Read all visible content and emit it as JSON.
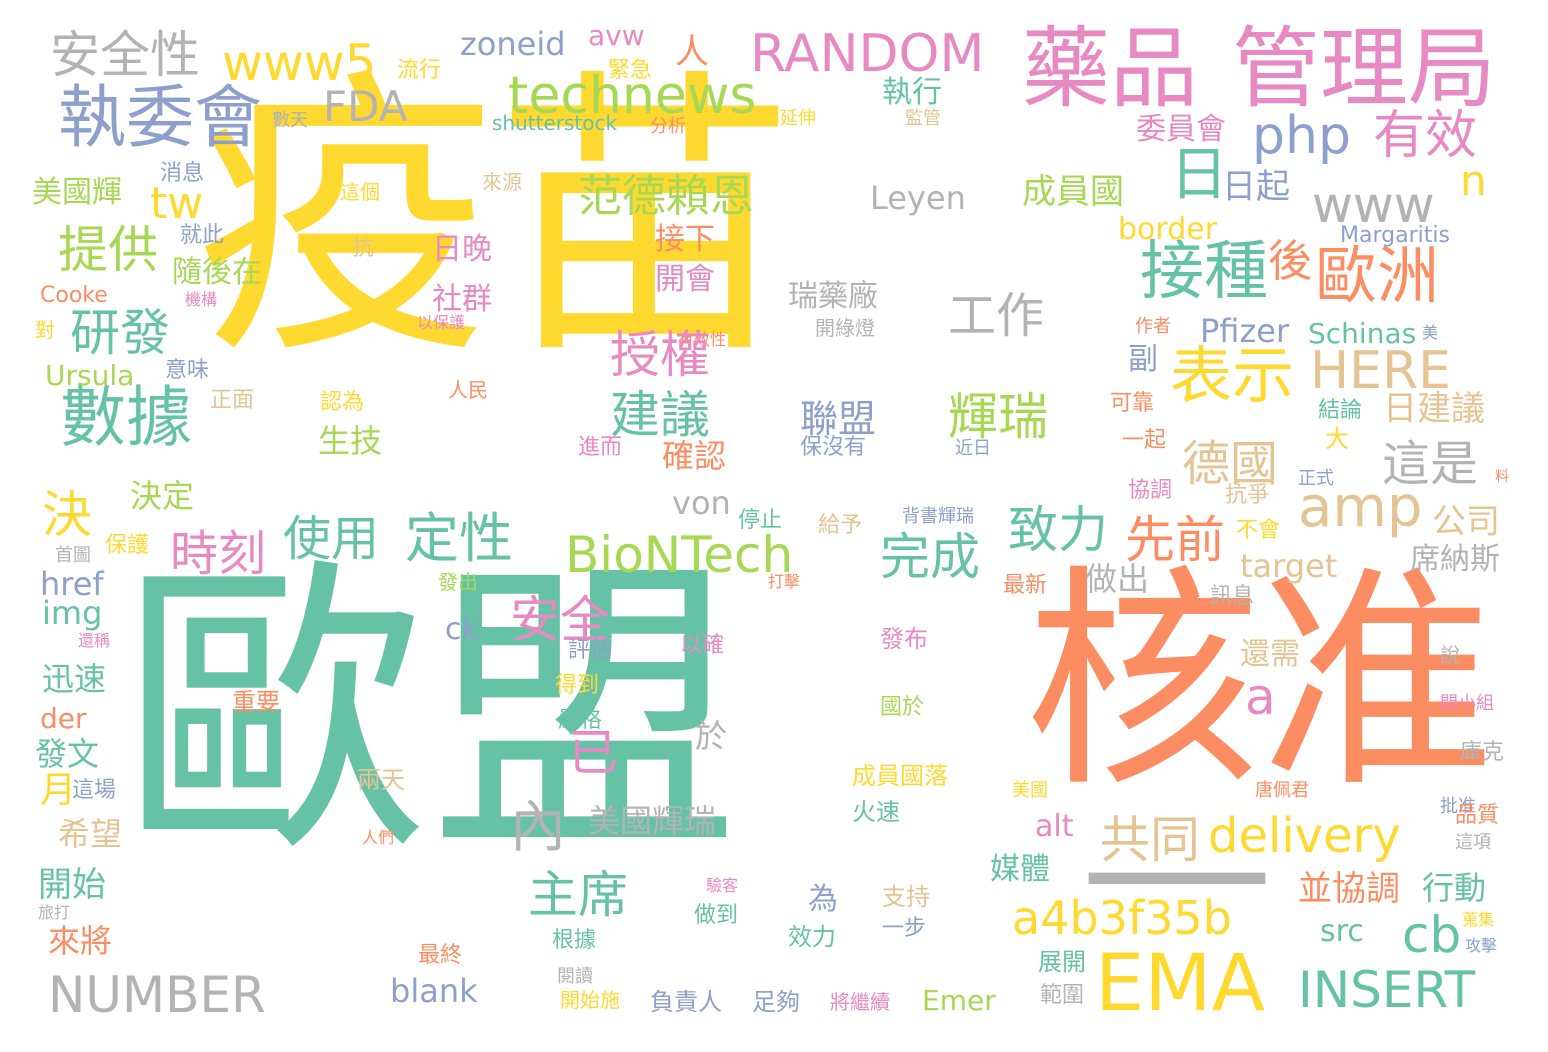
{
  "palette": {
    "teal": "#66c2a5",
    "orange": "#fc8d62",
    "blue": "#8da0cb",
    "pink": "#e78ac3",
    "green": "#a6d854",
    "yellow": "#ffd92f",
    "tan": "#e5c494",
    "gray": "#b3b3b3"
  },
  "words": [
    {
      "text": "疫苗",
      "color": "#ffd92f"
    },
    {
      "text": "歐盟",
      "color": "#66c2a5"
    },
    {
      "text": "核准",
      "color": "#fc8d62"
    },
    {
      "text": "—",
      "color": "#b3b3b3"
    },
    {
      "text": "藥品",
      "color": "#e78ac3"
    },
    {
      "text": "管理局",
      "color": "#e78ac3"
    },
    {
      "text": "EMA",
      "color": "#ffd92f"
    },
    {
      "text": "執委會",
      "color": "#8da0cb"
    },
    {
      "text": "數據",
      "color": "#66c2a5"
    },
    {
      "text": "接種",
      "color": "#66c2a5"
    },
    {
      "text": "表示",
      "color": "#ffd92f"
    },
    {
      "text": "歐洲",
      "color": "#fc8d62"
    },
    {
      "text": "RANDOM",
      "color": "#e78ac3"
    },
    {
      "text": "technews",
      "color": "#a6d854"
    },
    {
      "text": "www5",
      "color": "#ffd92f"
    },
    {
      "text": "安全性",
      "color": "#b3b3b3"
    },
    {
      "text": "FDA",
      "color": "#b3b3b3"
    },
    {
      "text": "zoneid",
      "color": "#8da0cb"
    },
    {
      "text": "avw",
      "color": "#e78ac3"
    },
    {
      "text": "流行",
      "color": "#ffd92f"
    },
    {
      "text": "緊急",
      "color": "#ffd92f"
    },
    {
      "text": "人",
      "color": "#fc8d62"
    },
    {
      "text": "執行",
      "color": "#66c2a5"
    },
    {
      "text": "監管",
      "color": "#e5c494"
    },
    {
      "text": "php",
      "color": "#8da0cb"
    },
    {
      "text": "有效",
      "color": "#e78ac3"
    },
    {
      "text": "日",
      "color": "#66c2a5"
    },
    {
      "text": "日起",
      "color": "#8da0cb"
    },
    {
      "text": "委員會",
      "color": "#e78ac3"
    },
    {
      "text": "n",
      "color": "#ffd92f"
    },
    {
      "text": "www",
      "color": "#b3b3b3"
    },
    {
      "text": "shutterstock",
      "color": "#66c2a5"
    },
    {
      "text": "分析",
      "color": "#fc8d62"
    },
    {
      "text": "延伸",
      "color": "#ffd92f"
    },
    {
      "text": "數天",
      "color": "#b3b3b3"
    },
    {
      "text": "消息",
      "color": "#8da0cb"
    },
    {
      "text": "美國輝",
      "color": "#a6d854"
    },
    {
      "text": "tw",
      "color": "#ffd92f"
    },
    {
      "text": "這個",
      "color": "#ffd92f"
    },
    {
      "text": "來源",
      "color": "#e5c494"
    },
    {
      "text": "范德賴恩",
      "color": "#a6d854"
    },
    {
      "text": "Leyen",
      "color": "#b3b3b3"
    },
    {
      "text": "成員國",
      "color": "#a6d854"
    },
    {
      "text": "border",
      "color": "#ffd92f"
    },
    {
      "text": "Margaritis",
      "color": "#8da0cb"
    },
    {
      "text": "就此",
      "color": "#8da0cb"
    },
    {
      "text": "提供",
      "color": "#a6d854"
    },
    {
      "text": "抗",
      "color": "#e5c494"
    },
    {
      "text": "日晚",
      "color": "#e78ac3"
    },
    {
      "text": "接下",
      "color": "#fc8d62"
    },
    {
      "text": "隨後在",
      "color": "#a6d854"
    },
    {
      "text": "Cooke",
      "color": "#fc8d62"
    },
    {
      "text": "機構",
      "color": "#e78ac3"
    },
    {
      "text": "開會",
      "color": "#e78ac3"
    },
    {
      "text": "瑞藥廠",
      "color": "#b3b3b3"
    },
    {
      "text": "工作",
      "color": "#b3b3b3"
    },
    {
      "text": "後",
      "color": "#fc8d62"
    },
    {
      "text": "社群",
      "color": "#e78ac3"
    },
    {
      "text": "以保護",
      "color": "#e78ac3"
    },
    {
      "text": "有效性",
      "color": "#fc8d62"
    },
    {
      "text": "開綠燈",
      "color": "#b3b3b3"
    },
    {
      "text": "研發",
      "color": "#66c2a5"
    },
    {
      "text": "對",
      "color": "#ffd92f"
    },
    {
      "text": "作者",
      "color": "#fc8d62"
    },
    {
      "text": "美",
      "color": "#8da0cb"
    },
    {
      "text": "Pfizer",
      "color": "#8da0cb"
    },
    {
      "text": "Schinas",
      "color": "#66c2a5"
    },
    {
      "text": "授權",
      "color": "#e78ac3"
    },
    {
      "text": "HERE",
      "color": "#e5c494"
    },
    {
      "text": "副",
      "color": "#8da0cb"
    },
    {
      "text": "Ursula",
      "color": "#a6d854"
    },
    {
      "text": "意味",
      "color": "#8da0cb"
    },
    {
      "text": "人民",
      "color": "#fc8d62"
    },
    {
      "text": "正面",
      "color": "#e5c494"
    },
    {
      "text": "認為",
      "color": "#ffd92f"
    },
    {
      "text": "建議",
      "color": "#66c2a5"
    },
    {
      "text": "聯盟",
      "color": "#8da0cb"
    },
    {
      "text": "輝瑞",
      "color": "#a6d854"
    },
    {
      "text": "可靠",
      "color": "#fc8d62"
    },
    {
      "text": "日建議",
      "color": "#e5c494"
    },
    {
      "text": "結論",
      "color": "#66c2a5"
    },
    {
      "text": "一起",
      "color": "#fc8d62"
    },
    {
      "text": "大",
      "color": "#ffd92f"
    },
    {
      "text": "生技",
      "color": "#a6d854"
    },
    {
      "text": "進而",
      "color": "#e78ac3"
    },
    {
      "text": "確認",
      "color": "#fc8d62"
    },
    {
      "text": "保沒有",
      "color": "#8da0cb"
    },
    {
      "text": "近日",
      "color": "#8da0cb"
    },
    {
      "text": "德國",
      "color": "#e5c494"
    },
    {
      "text": "這是",
      "color": "#b3b3b3"
    },
    {
      "text": "決定",
      "color": "#a6d854"
    },
    {
      "text": "決",
      "color": "#ffd92f"
    },
    {
      "text": "amp",
      "color": "#e5c494"
    },
    {
      "text": "協調",
      "color": "#e78ac3"
    },
    {
      "text": "抗爭",
      "color": "#e5c494"
    },
    {
      "text": "正式",
      "color": "#8da0cb"
    },
    {
      "text": "料",
      "color": "#fc8d62"
    },
    {
      "text": "時刻",
      "color": "#e78ac3"
    },
    {
      "text": "使用",
      "color": "#66c2a5"
    },
    {
      "text": "定性",
      "color": "#66c2a5"
    },
    {
      "text": "von",
      "color": "#b3b3b3"
    },
    {
      "text": "停止",
      "color": "#66c2a5"
    },
    {
      "text": "給予",
      "color": "#e5c494"
    },
    {
      "text": "背書輝瑞",
      "color": "#8da0cb"
    },
    {
      "text": "致力",
      "color": "#66c2a5"
    },
    {
      "text": "先前",
      "color": "#fc8d62"
    },
    {
      "text": "公司",
      "color": "#e5c494"
    },
    {
      "text": "不會",
      "color": "#ffd92f"
    },
    {
      "text": "BioNTech",
      "color": "#a6d854"
    },
    {
      "text": "完成",
      "color": "#66c2a5"
    },
    {
      "text": "首圖",
      "color": "#b3b3b3"
    },
    {
      "text": "保護",
      "color": "#ffd92f"
    },
    {
      "text": "href",
      "color": "#8da0cb"
    },
    {
      "text": "席納斯",
      "color": "#b3b3b3"
    },
    {
      "text": "target",
      "color": "#e5c494"
    },
    {
      "text": "img",
      "color": "#66c2a5"
    },
    {
      "text": "發出",
      "color": "#a6d854"
    },
    {
      "text": "安全",
      "color": "#e78ac3"
    },
    {
      "text": "打擊",
      "color": "#fc8d62"
    },
    {
      "text": "做出",
      "color": "#b3b3b3"
    },
    {
      "text": "最新",
      "color": "#fc8d62"
    },
    {
      "text": "ck",
      "color": "#8da0cb"
    },
    {
      "text": "訊息",
      "color": "#b3b3b3"
    },
    {
      "text": "還稱",
      "color": "#e78ac3"
    },
    {
      "text": "以確",
      "color": "#e78ac3"
    },
    {
      "text": "發布",
      "color": "#e78ac3"
    },
    {
      "text": "評估",
      "color": "#8da0cb"
    },
    {
      "text": "還需",
      "color": "#e5c494"
    },
    {
      "text": "說",
      "color": "#b3b3b3"
    },
    {
      "text": "迅速",
      "color": "#66c2a5"
    },
    {
      "text": "得到",
      "color": "#ffd92f"
    },
    {
      "text": "a",
      "color": "#e78ac3"
    },
    {
      "text": "der",
      "color": "#fc8d62"
    },
    {
      "text": "重要",
      "color": "#fc8d62"
    },
    {
      "text": "國於",
      "color": "#a6d854"
    },
    {
      "text": "嚴格",
      "color": "#66c2a5"
    },
    {
      "text": "問小組",
      "color": "#e78ac3"
    },
    {
      "text": "於",
      "color": "#b3b3b3"
    },
    {
      "text": "發文",
      "color": "#66c2a5"
    },
    {
      "text": "已",
      "color": "#e78ac3"
    },
    {
      "text": "庫克",
      "color": "#b3b3b3"
    },
    {
      "text": "月",
      "color": "#ffd92f"
    },
    {
      "text": "這場",
      "color": "#8da0cb"
    },
    {
      "text": "兩天",
      "color": "#e5c494"
    },
    {
      "text": "成員國落",
      "color": "#ffd92f"
    },
    {
      "text": "美國",
      "color": "#ffd92f"
    },
    {
      "text": "唐佩君",
      "color": "#fc8d62"
    },
    {
      "text": "內",
      "color": "#b3b3b3"
    },
    {
      "text": "美國輝瑞",
      "color": "#b3b3b3"
    },
    {
      "text": "批准",
      "color": "#8da0cb"
    },
    {
      "text": "品質",
      "color": "#fc8d62"
    },
    {
      "text": "希望",
      "color": "#e5c494"
    },
    {
      "text": "人們",
      "color": "#fc8d62"
    },
    {
      "text": "火速",
      "color": "#66c2a5"
    },
    {
      "text": "alt",
      "color": "#e78ac3"
    },
    {
      "text": "這項",
      "color": "#b3b3b3"
    },
    {
      "text": "共同",
      "color": "#e5c494"
    },
    {
      "text": "delivery",
      "color": "#ffd92f"
    },
    {
      "text": "開始",
      "color": "#66c2a5"
    },
    {
      "text": "媒體",
      "color": "#66c2a5"
    },
    {
      "text": "主席",
      "color": "#66c2a5"
    },
    {
      "text": "驗客",
      "color": "#e78ac3"
    },
    {
      "text": "為",
      "color": "#8da0cb"
    },
    {
      "text": "支持",
      "color": "#e5c494"
    },
    {
      "text": "並協調",
      "color": "#fc8d62"
    },
    {
      "text": "行動",
      "color": "#66c2a5"
    },
    {
      "text": "旅打",
      "color": "#b3b3b3"
    },
    {
      "text": "蒐集",
      "color": "#ffd92f"
    },
    {
      "text": "做到",
      "color": "#66c2a5"
    },
    {
      "text": "一步",
      "color": "#8da0cb"
    },
    {
      "text": "效力",
      "color": "#66c2a5"
    },
    {
      "text": "a4b3f35b",
      "color": "#ffd92f"
    },
    {
      "text": "cb",
      "color": "#66c2a5"
    },
    {
      "text": "src",
      "color": "#66c2a5"
    },
    {
      "text": "攻擊",
      "color": "#8da0cb"
    },
    {
      "text": "來將",
      "color": "#fc8d62"
    },
    {
      "text": "根據",
      "color": "#66c2a5"
    },
    {
      "text": "最終",
      "color": "#fc8d62"
    },
    {
      "text": "展開",
      "color": "#66c2a5"
    },
    {
      "text": "閱讀",
      "color": "#b3b3b3"
    },
    {
      "text": "NUMBER",
      "color": "#b3b3b3"
    },
    {
      "text": "blank",
      "color": "#8da0cb"
    },
    {
      "text": "INSERT",
      "color": "#66c2a5"
    },
    {
      "text": "範圍",
      "color": "#b3b3b3"
    },
    {
      "text": "開始施",
      "color": "#ffd92f"
    },
    {
      "text": "負責人",
      "color": "#8da0cb"
    },
    {
      "text": "足夠",
      "color": "#8da0cb"
    },
    {
      "text": "將繼續",
      "color": "#e78ac3"
    },
    {
      "text": "Emer",
      "color": "#a6d854"
    }
  ]
}
